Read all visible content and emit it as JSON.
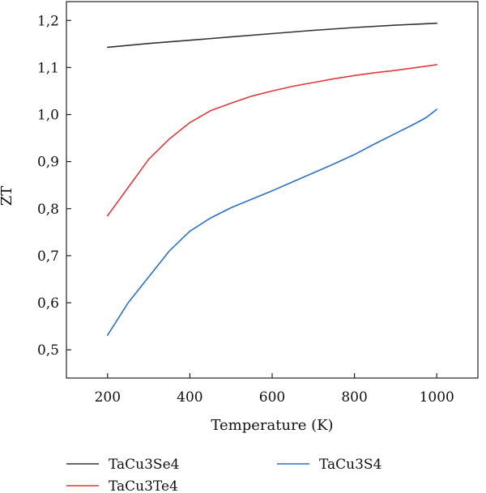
{
  "chart_data": {
    "type": "line",
    "xlabel": "Temperature (K)",
    "ylabel": "ZT",
    "xlim": [
      100,
      1100
    ],
    "ylim": [
      0.44,
      1.24
    ],
    "x_ticks": [
      200,
      400,
      600,
      800,
      1000
    ],
    "y_ticks": [
      0.5,
      0.6,
      0.7,
      0.8,
      0.9,
      1.0,
      1.1,
      1.2
    ],
    "y_tick_labels": [
      "0,5",
      "0,6",
      "0,7",
      "0,8",
      "0,9",
      "1,0",
      "1,1",
      "1,2"
    ],
    "grid": false,
    "legend_position": "bottom",
    "series": [
      {
        "name": "TaCu3Se4",
        "color": "#333333",
        "x": [
          200,
          300,
          400,
          500,
          600,
          700,
          800,
          900,
          1000
        ],
        "y": [
          1.143,
          1.151,
          1.158,
          1.165,
          1.172,
          1.179,
          1.185,
          1.19,
          1.194
        ]
      },
      {
        "name": "TaCu3Te4",
        "color": "#e0393e",
        "x": [
          200,
          250,
          300,
          350,
          400,
          450,
          500,
          550,
          600,
          650,
          700,
          750,
          800,
          850,
          900,
          950,
          1000
        ],
        "y": [
          0.785,
          0.845,
          0.905,
          0.948,
          0.983,
          1.008,
          1.024,
          1.039,
          1.05,
          1.06,
          1.068,
          1.076,
          1.083,
          1.089,
          1.094,
          1.1,
          1.106
        ]
      },
      {
        "name": "TaCu3S4",
        "color": "#2a72c8",
        "x": [
          200,
          250,
          300,
          350,
          400,
          450,
          500,
          550,
          600,
          650,
          700,
          750,
          800,
          850,
          900,
          950,
          975,
          1000
        ],
        "y": [
          0.531,
          0.6,
          0.655,
          0.71,
          0.752,
          0.78,
          0.802,
          0.82,
          0.838,
          0.857,
          0.876,
          0.895,
          0.915,
          0.938,
          0.96,
          0.982,
          0.994,
          1.011
        ]
      }
    ]
  }
}
